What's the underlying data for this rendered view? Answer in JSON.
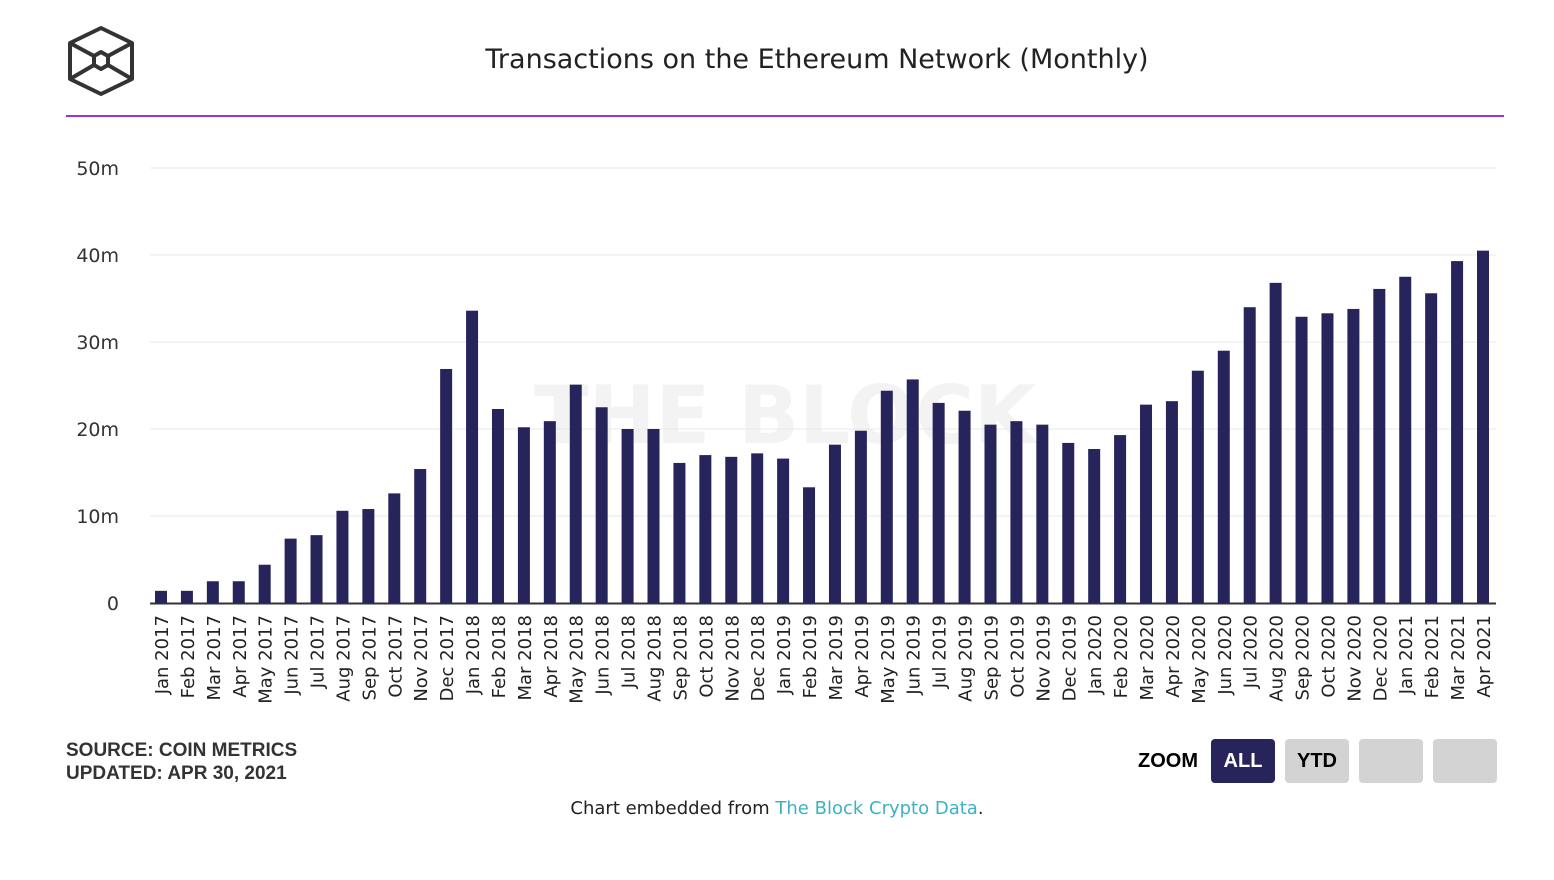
{
  "header": {
    "title": "Transactions on the Ethereum Network (Monthly)",
    "logo": "The Block cube logo",
    "watermark": "THE BLOCK"
  },
  "footer": {
    "source": "SOURCE: COIN METRICS",
    "updated": "UPDATED: APR 30, 2021",
    "zoom_label": "ZOOM",
    "zoom_buttons": [
      "ALL",
      "YTD",
      "",
      ""
    ],
    "active_zoom": "ALL",
    "credit_prefix": "Chart embedded from ",
    "credit_link": "The Block Crypto Data",
    "credit_suffix": "."
  },
  "colors": {
    "bar": "#27245c",
    "accent_rule": "#9333ea",
    "link": "#3bb3c3"
  },
  "chart_data": {
    "type": "bar",
    "title": "Transactions on the Ethereum Network (Monthly)",
    "ylim": [
      0,
      50
    ],
    "yticks": [
      "0",
      "10m",
      "20m",
      "30m",
      "40m",
      "50m"
    ],
    "grid": true,
    "categories": [
      "Jan 2017",
      "Feb 2017",
      "Mar 2017",
      "Apr 2017",
      "May 2017",
      "Jun 2017",
      "Jul 2017",
      "Aug 2017",
      "Sep 2017",
      "Oct 2017",
      "Nov 2017",
      "Dec 2017",
      "Jan 2018",
      "Feb 2018",
      "Mar 2018",
      "Apr 2018",
      "May 2018",
      "Jun 2018",
      "Jul 2018",
      "Aug 2018",
      "Sep 2018",
      "Oct 2018",
      "Nov 2018",
      "Dec 2018",
      "Jan 2019",
      "Feb 2019",
      "Mar 2019",
      "Apr 2019",
      "May 2019",
      "Jun 2019",
      "Jul 2019",
      "Aug 2019",
      "Sep 2019",
      "Oct 2019",
      "Nov 2019",
      "Dec 2019",
      "Jan 2020",
      "Feb 2020",
      "Mar 2020",
      "Apr 2020",
      "May 2020",
      "Jun 2020",
      "Jul 2020",
      "Aug 2020",
      "Sep 2020",
      "Oct 2020",
      "Nov 2020",
      "Dec 2020",
      "Jan 2021",
      "Feb 2021",
      "Mar 2021",
      "Apr 2021"
    ],
    "values": [
      1.4,
      1.4,
      2.5,
      2.5,
      4.4,
      7.4,
      7.8,
      10.6,
      10.8,
      12.6,
      15.4,
      26.9,
      33.6,
      22.3,
      20.2,
      20.9,
      25.1,
      22.5,
      20.0,
      20.0,
      16.1,
      17.0,
      16.8,
      17.2,
      16.6,
      13.3,
      18.2,
      19.8,
      24.4,
      25.7,
      23.0,
      22.1,
      20.5,
      20.9,
      20.5,
      18.4,
      17.7,
      19.3,
      22.8,
      23.2,
      26.7,
      29.0,
      34.0,
      36.8,
      32.9,
      33.3,
      33.8,
      36.1,
      37.5,
      35.6,
      39.3,
      40.5
    ],
    "unit": "millions of transactions"
  }
}
